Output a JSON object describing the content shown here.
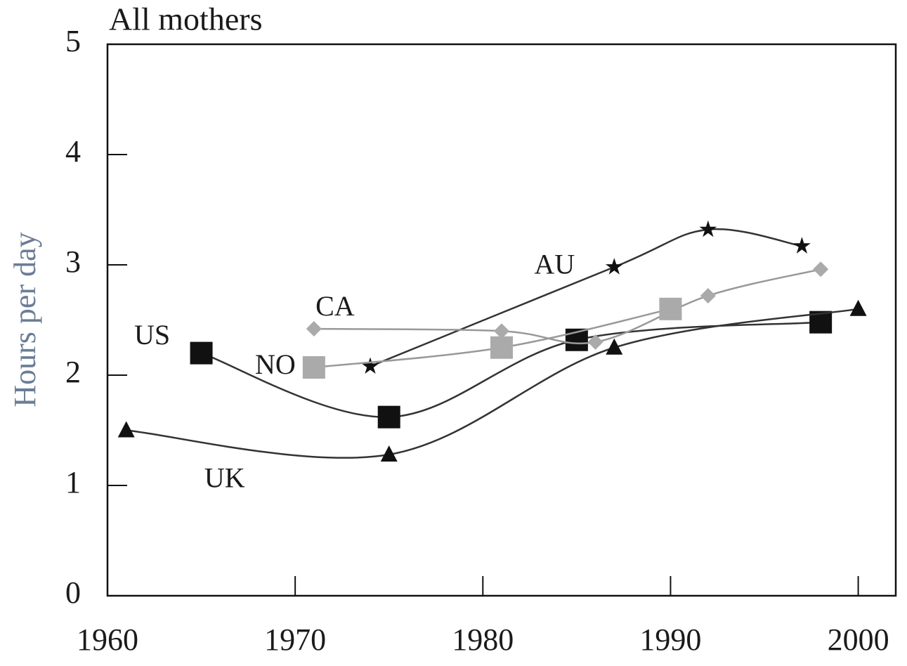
{
  "chart_data": {
    "type": "line",
    "title": "All mothers",
    "ylabel": "Hours per day",
    "xlim": [
      1960,
      2002
    ],
    "xticks": [
      1960,
      1970,
      1980,
      1990,
      2000
    ],
    "ylim": [
      0,
      5
    ],
    "yticks": [
      0,
      1,
      2,
      3,
      4,
      5
    ],
    "series": [
      {
        "name": "US",
        "color": "#111111",
        "marker": "square",
        "x": [
          1965,
          1975,
          1985,
          1998
        ],
        "values": [
          2.2,
          1.62,
          2.32,
          2.48
        ]
      },
      {
        "name": "UK",
        "color": "#111111",
        "marker": "triangle",
        "x": [
          1961,
          1975,
          1987,
          2000
        ],
        "values": [
          1.5,
          1.28,
          2.25,
          2.6
        ]
      },
      {
        "name": "AU",
        "color": "#111111",
        "marker": "star",
        "x": [
          1974,
          1987,
          1992,
          1997
        ],
        "values": [
          2.08,
          2.98,
          3.32,
          3.17
        ]
      },
      {
        "name": "CA",
        "color": "#aaaaaa",
        "marker": "diamond",
        "x": [
          1971,
          1981,
          1986,
          1992,
          1998
        ],
        "values": [
          2.42,
          2.4,
          2.3,
          2.72,
          2.96
        ]
      },
      {
        "name": "NO",
        "color": "#aaaaaa",
        "marker": "square",
        "x": [
          1971,
          1981,
          1990
        ],
        "values": [
          2.07,
          2.25,
          2.6
        ]
      }
    ]
  }
}
